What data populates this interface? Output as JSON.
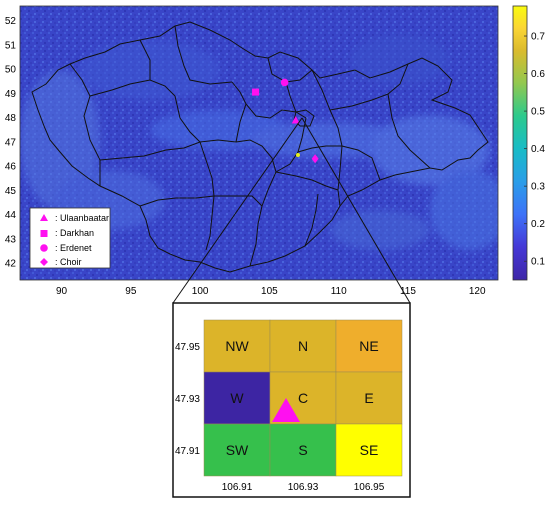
{
  "map": {
    "lon_ticks": [
      "90",
      "95",
      "100",
      "105",
      "110",
      "115",
      "120"
    ],
    "lat_ticks": [
      "42",
      "43",
      "44",
      "45",
      "46",
      "47",
      "48",
      "49",
      "50",
      "51",
      "52"
    ],
    "lon_range": [
      87,
      121.5
    ],
    "lat_range": [
      41.3,
      52.6
    ],
    "background_color": "#3b3ec0",
    "land_color": "#3346c8",
    "colorbar": {
      "ticks": [
        "0.1",
        "0.2",
        "0.3",
        "0.4",
        "0.5",
        "0.6",
        "0.7"
      ],
      "range": [
        0.05,
        0.78
      ],
      "colors": [
        "#3e26a8",
        "#4538d6",
        "#3d72f8",
        "#2a9ee8",
        "#18bcc6",
        "#2dca8c",
        "#93c84f",
        "#dcbb2d",
        "#fbd634",
        "#f9fb0e"
      ]
    },
    "legend": {
      "items": [
        {
          "symbol": "triangle",
          "label": ": Ulaanbaatar"
        },
        {
          "symbol": "square",
          "label": ": Darkhan"
        },
        {
          "symbol": "circle",
          "label": ": Erdenet"
        },
        {
          "symbol": "diamond",
          "label": ": Choir"
        }
      ],
      "marker_color": "#ff10f0"
    },
    "cities": [
      {
        "name": "Ulaanbaatar",
        "symbol": "triangle",
        "lon": 106.9,
        "lat": 47.9
      },
      {
        "name": "Darkhan",
        "symbol": "square",
        "lon": 104.0,
        "lat": 49.05
      },
      {
        "name": "Erdenet",
        "symbol": "circle",
        "lon": 106.1,
        "lat": 49.45
      },
      {
        "name": "Choir",
        "symbol": "diamond",
        "lon": 108.3,
        "lat": 46.3
      }
    ]
  },
  "inset": {
    "x_ticks": [
      "106.91",
      "106.93",
      "106.95"
    ],
    "y_ticks": [
      "47.95",
      "47.93",
      "47.91"
    ],
    "cells": [
      {
        "label": "NW",
        "color": "#dcb429"
      },
      {
        "label": "N",
        "color": "#dcb429"
      },
      {
        "label": "NE",
        "color": "#efae2c"
      },
      {
        "label": "W",
        "color": "#3d25a3"
      },
      {
        "label": "C",
        "color": "#dcb429"
      },
      {
        "label": "E",
        "color": "#dcb429"
      },
      {
        "label": "SW",
        "color": "#36c04c"
      },
      {
        "label": "S",
        "color": "#36c04c"
      },
      {
        "label": "SE",
        "color": "#ffff00"
      }
    ],
    "marker": {
      "symbol": "triangle",
      "color": "#ff10f0",
      "cell": "C"
    }
  }
}
